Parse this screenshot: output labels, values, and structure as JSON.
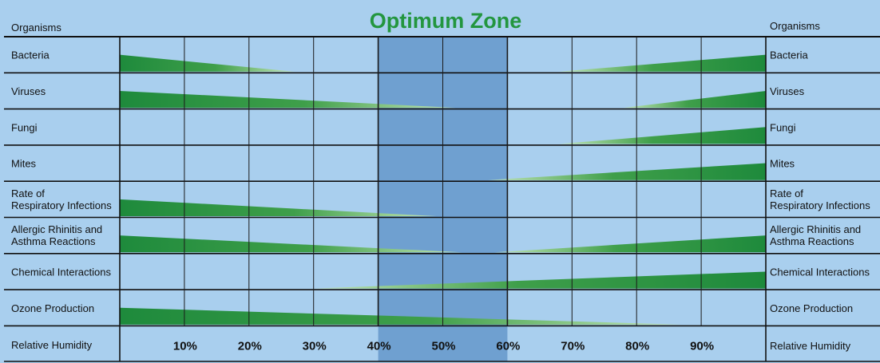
{
  "title": "Optimum Zone",
  "column_header": "Organisms",
  "x_axis_label": "Relative Humidity",
  "tick_labels": [
    "10%",
    "20%",
    "30%",
    "40%",
    "50%",
    "60%",
    "70%",
    "80%",
    "90%"
  ],
  "colors": {
    "background": "#a9cfee",
    "optimum_zone": "#6fa0d0",
    "wedge": "#1e8a3c",
    "wedge_fade": "#c4e6b6",
    "title": "#23963f"
  },
  "chart_data": {
    "type": "area",
    "x_unit": "percent relative humidity",
    "xlim": [
      0,
      100
    ],
    "optimum_zone": [
      40,
      60
    ],
    "grid": true,
    "organisms": [
      {
        "name": "Bacteria",
        "label_lines": [
          "Bacteria"
        ],
        "left": {
          "from": 0,
          "to": 27
        },
        "right": {
          "from": 68,
          "to": 100
        }
      },
      {
        "name": "Viruses",
        "label_lines": [
          "Viruses"
        ],
        "left": {
          "from": 0,
          "to": 52
        },
        "right": {
          "from": 78,
          "to": 100
        }
      },
      {
        "name": "Fungi",
        "label_lines": [
          "Fungi"
        ],
        "left": null,
        "right": {
          "from": 68,
          "to": 100
        }
      },
      {
        "name": "Mites",
        "label_lines": [
          "Mites"
        ],
        "left": null,
        "right": {
          "from": 57,
          "to": 100
        }
      },
      {
        "name": "Rate of Respiratory Infections",
        "label_lines": [
          "Rate of",
          "Respiratory Infections"
        ],
        "left": {
          "from": 0,
          "to": 49
        },
        "right": null
      },
      {
        "name": "Allergic Rhinitis and Asthma Reactions",
        "label_lines": [
          "Allergic Rhinitis and",
          "Asthma Reactions"
        ],
        "left": {
          "from": 0,
          "to": 53
        },
        "right": {
          "from": 58,
          "to": 100
        }
      },
      {
        "name": "Chemical Interactions",
        "label_lines": [
          "Chemical Interactions"
        ],
        "left": null,
        "right": {
          "from": 30,
          "to": 100
        }
      },
      {
        "name": "Ozone Production",
        "label_lines": [
          "Ozone Production"
        ],
        "left": {
          "from": 0,
          "to": 87
        },
        "right": null
      }
    ]
  }
}
